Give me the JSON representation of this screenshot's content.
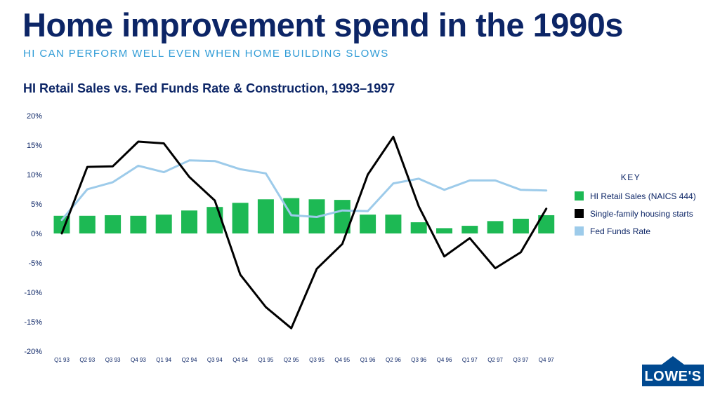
{
  "header": {
    "title": "Home improvement spend in the 1990s",
    "subtitle": "HI CAN PERFORM WELL EVEN WHEN HOME BUILDING SLOWS"
  },
  "key": {
    "title": "KEY",
    "items": [
      {
        "label": "HI Retail Sales (NAICS 444)",
        "color": "#1db954"
      },
      {
        "label": "Single-family housing starts",
        "color": "#000000"
      },
      {
        "label": "Fed Funds Rate",
        "color": "#9dcbea"
      }
    ]
  },
  "logo": {
    "text": "LOWE'S",
    "color": "#004990"
  },
  "chart_data": {
    "type": "bar",
    "title": "HI Retail Sales vs. Fed Funds Rate & Construction, 1993–1997",
    "categories": [
      "Q1 93",
      "Q2 93",
      "Q3 93",
      "Q4 93",
      "Q1 94",
      "Q2 94",
      "Q3 94",
      "Q4 94",
      "Q1 95",
      "Q2 95",
      "Q3 95",
      "Q4 95",
      "Q1 96",
      "Q2 96",
      "Q3 96",
      "Q4 96",
      "Q1 97",
      "Q2 97",
      "Q3 97",
      "Q4 97"
    ],
    "ylim": [
      -20,
      20
    ],
    "yticks": [
      20,
      15,
      10,
      5,
      0,
      -5,
      -10,
      -15,
      -20
    ],
    "ytick_labels": [
      "20%",
      "15%",
      "10%",
      "5%",
      "0%",
      "-5%",
      "-10%",
      "-15%",
      "-20%"
    ],
    "grid": false,
    "legend_position": "right",
    "series": [
      {
        "name": "HI Retail Sales (NAICS 444)",
        "type": "bar",
        "color": "#1db954",
        "values": [
          3.0,
          3.0,
          3.1,
          3.0,
          3.2,
          3.9,
          4.5,
          5.2,
          5.8,
          6.0,
          5.8,
          5.7,
          3.2,
          3.2,
          1.9,
          0.9,
          1.3,
          2.1,
          2.5,
          3.1
        ]
      },
      {
        "name": "Single-family housing starts",
        "type": "line",
        "color": "#000000",
        "values": [
          0.0,
          11.3,
          11.4,
          15.6,
          15.3,
          9.6,
          5.6,
          -7.0,
          -12.5,
          -16.1,
          -6.0,
          -1.8,
          10.0,
          16.4,
          4.6,
          -3.9,
          -0.8,
          -5.9,
          -3.2,
          4.2
        ]
      },
      {
        "name": "Fed Funds Rate",
        "type": "line",
        "color": "#9dcbea",
        "values": [
          2.3,
          7.5,
          8.7,
          11.5,
          10.4,
          12.4,
          12.3,
          10.9,
          10.2,
          3.1,
          2.8,
          3.9,
          3.8,
          8.5,
          9.3,
          7.4,
          9.0,
          9.0,
          7.4,
          7.3
        ]
      }
    ]
  }
}
